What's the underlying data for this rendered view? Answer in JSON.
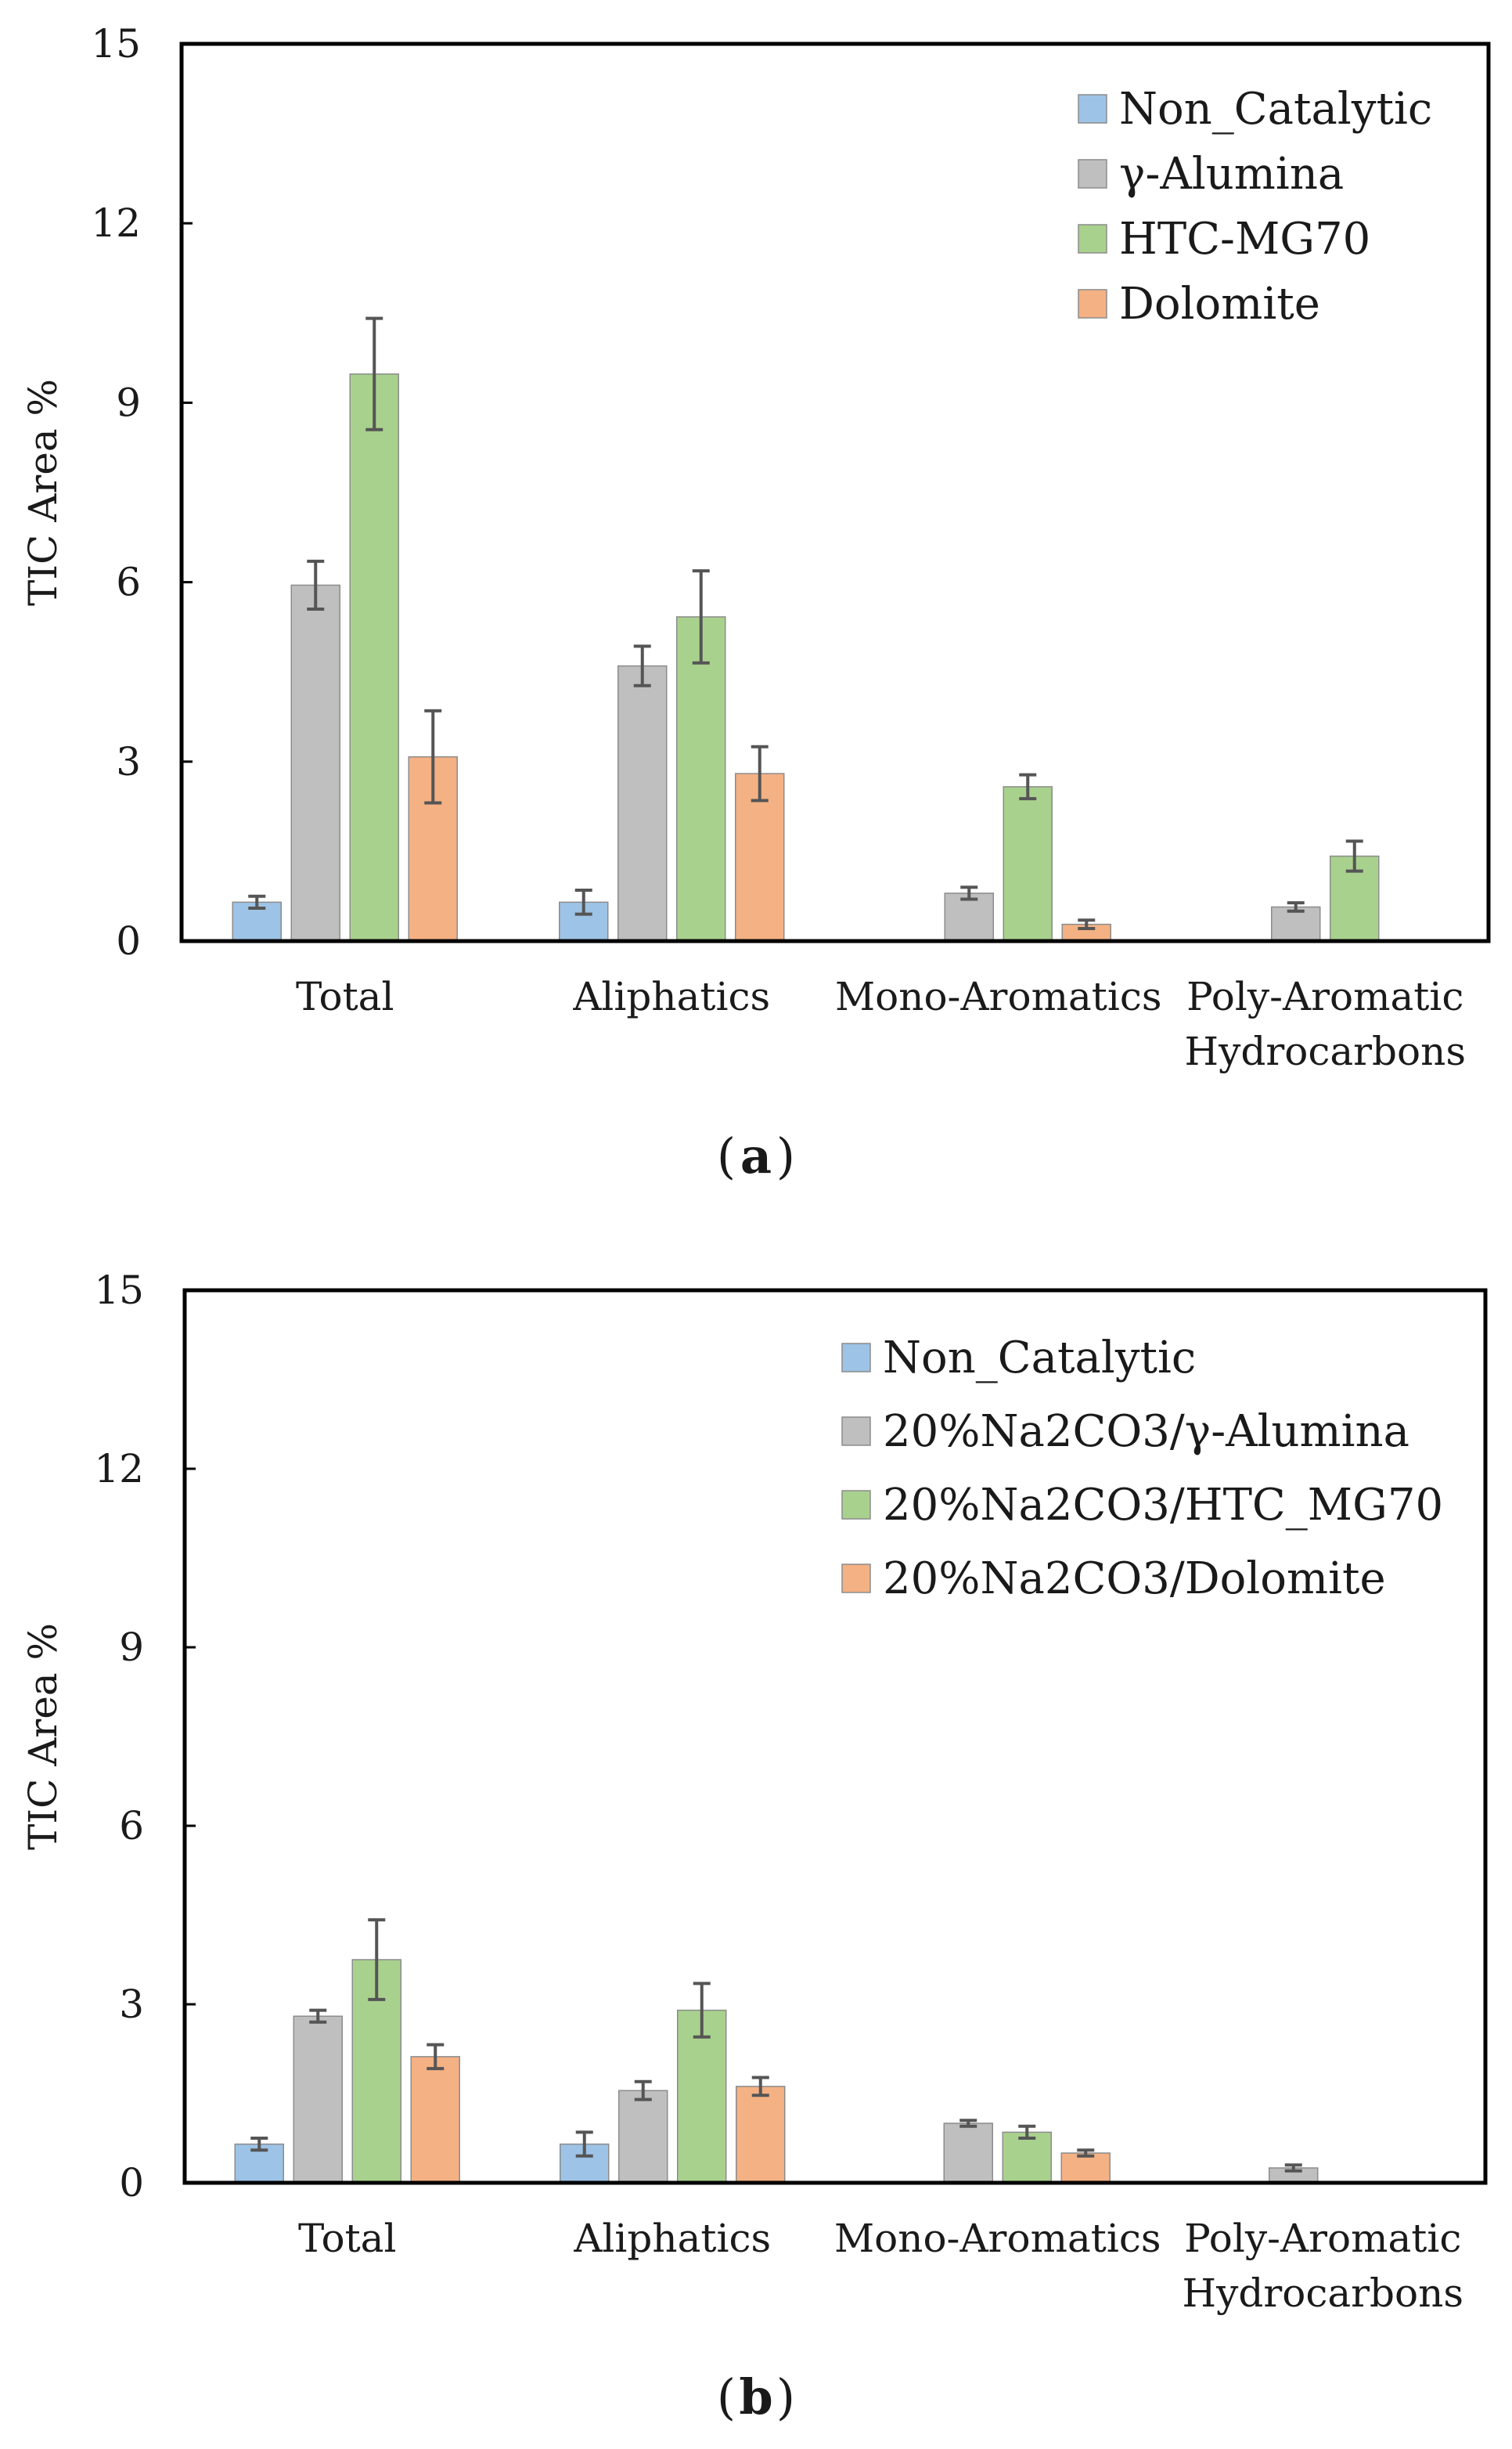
{
  "chart_data": [
    {
      "type": "bar",
      "panel_label": "a",
      "title": "",
      "xlabel": "",
      "ylabel": "TIC Area %",
      "ylim": [
        0,
        15
      ],
      "yticks": [
        "0",
        "3",
        "6",
        "9",
        "12",
        "15"
      ],
      "grid": false,
      "legend_position": "top-right",
      "categories": [
        [
          "Total"
        ],
        [
          "Aliphatics"
        ],
        [
          "Mono-Aromatics"
        ],
        [
          "Poly-Aromatic",
          "Hydrocarbons"
        ]
      ],
      "series": [
        {
          "name": "Non_Catalytic",
          "color": "#9dc3e6",
          "values": [
            0.65,
            0.65,
            0,
            0
          ],
          "errors": [
            0.1,
            0.2,
            0,
            0
          ]
        },
        {
          "name": "γ-Alumina",
          "color": "#bfbfbf",
          "values": [
            5.95,
            4.6,
            0.8,
            0.57
          ],
          "errors": [
            0.4,
            0.33,
            0.1,
            0.07
          ]
        },
        {
          "name": "HTC-MG70",
          "color": "#a9d18e",
          "values": [
            9.48,
            5.42,
            2.58,
            1.42
          ],
          "errors": [
            0.93,
            0.77,
            0.2,
            0.25
          ]
        },
        {
          "name": "Dolomite",
          "color": "#f4b183",
          "values": [
            3.08,
            2.8,
            0.28,
            0
          ],
          "errors": [
            0.77,
            0.45,
            0.07,
            0
          ]
        }
      ]
    },
    {
      "type": "bar",
      "panel_label": "b",
      "title": "",
      "xlabel": "",
      "ylabel": "TIC Area %",
      "ylim": [
        0,
        15
      ],
      "yticks": [
        "0",
        "3",
        "6",
        "9",
        "12",
        "15"
      ],
      "grid": false,
      "legend_position": "top-right",
      "categories": [
        [
          "Total"
        ],
        [
          "Aliphatics"
        ],
        [
          "Mono-Aromatics"
        ],
        [
          "Poly-Aromatic",
          "Hydrocarbons"
        ]
      ],
      "series": [
        {
          "name": "Non_Catalytic",
          "color": "#9dc3e6",
          "values": [
            0.65,
            0.65,
            0,
            0
          ],
          "errors": [
            0.1,
            0.2,
            0,
            0
          ]
        },
        {
          "name": "20%Na2CO3/γ-Alumina",
          "color": "#bfbfbf",
          "values": [
            2.8,
            1.55,
            1.0,
            0.25
          ],
          "errors": [
            0.1,
            0.15,
            0.05,
            0.05
          ]
        },
        {
          "name": "20%Na2CO3/HTC_MG70",
          "color": "#a9d18e",
          "values": [
            3.75,
            2.9,
            0.85,
            0
          ],
          "errors": [
            0.67,
            0.45,
            0.1,
            0
          ]
        },
        {
          "name": "20%Na2CO3/Dolomite",
          "color": "#f4b183",
          "values": [
            2.12,
            1.62,
            0.5,
            0
          ],
          "errors": [
            0.2,
            0.15,
            0.05,
            0
          ]
        }
      ]
    }
  ]
}
